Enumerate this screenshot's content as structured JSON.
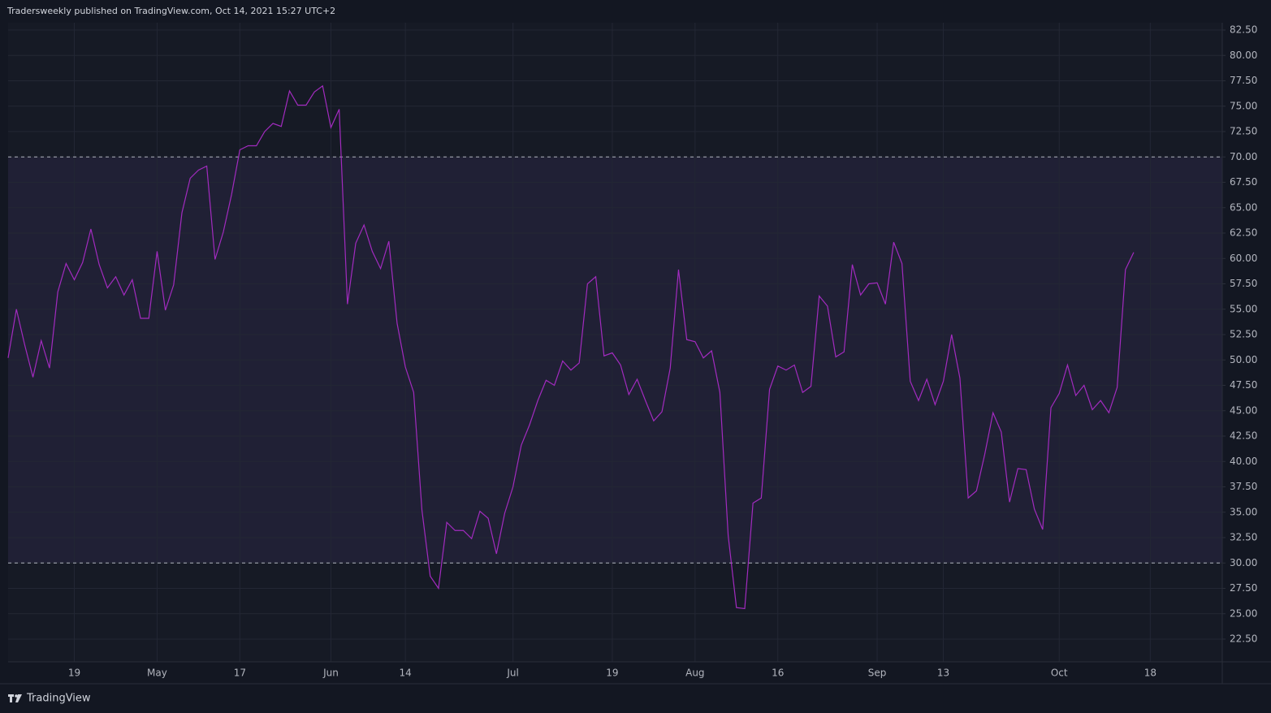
{
  "header": {
    "title": "Tradersweekly published on TradingView.com, Oct 14, 2021 15:27 UTC+2"
  },
  "footer": {
    "brand": "TradingView"
  },
  "chart_data": {
    "type": "line",
    "series": [
      {
        "color": "#a22bbf",
        "values": [
          50.2,
          55,
          51.5,
          48.3,
          51.9,
          49.2,
          56.7,
          59.5,
          57.9,
          59.6,
          62.9,
          59.4,
          57.1,
          58.2,
          56.4,
          57.9,
          54.1,
          54.1,
          60.7,
          54.9,
          57.4,
          64.5,
          67.9,
          68.7,
          69.1,
          59.9,
          62.6,
          66.3,
          70.7,
          71.1,
          71.1,
          72.5,
          73.3,
          73,
          76.5,
          75.1,
          75.1,
          76.4,
          77,
          72.9,
          74.7,
          55.5,
          61.5,
          63.3,
          60.7,
          59,
          61.7,
          53.6,
          49.3,
          46.8,
          35.2,
          28.7,
          27.5,
          34,
          33.2,
          33.2,
          32.4,
          35.1,
          34.4,
          30.9,
          34.9,
          37.5,
          41.6,
          43.6,
          46,
          48,
          47.5,
          49.9,
          49,
          49.7,
          57.5,
          58.2,
          50.4,
          50.7,
          49.5,
          46.6,
          48.1,
          46,
          44,
          44.9,
          49.2,
          58.9,
          52,
          51.8,
          50.2,
          50.9,
          46.8,
          32.7,
          25.6,
          25.5,
          35.9,
          36.4,
          47.1,
          49.4,
          49,
          49.5,
          46.8,
          47.4,
          56.3,
          55.3,
          50.3,
          50.8,
          59.4,
          56.4,
          57.5,
          57.6,
          55.5,
          61.6,
          59.5,
          47.9,
          46,
          48.1,
          45.6,
          47.9,
          52.5,
          48.2,
          36.4,
          37.1,
          40.7,
          44.8,
          42.9,
          36,
          39.3,
          39.2,
          35.3,
          33.3,
          45.3,
          46.7,
          49.5,
          46.5,
          47.5,
          45.1,
          46,
          44.8,
          47.3,
          58.9,
          60.6
        ]
      }
    ],
    "band": [
      30,
      70
    ],
    "band_color": "#7e57c2",
    "xlim": [
      0,
      146.7
    ],
    "xticks": [
      {
        "value": 8,
        "label": "19"
      },
      {
        "value": 18,
        "label": "May"
      },
      {
        "value": 28,
        "label": "17"
      },
      {
        "value": 39,
        "label": "Jun"
      },
      {
        "value": 48,
        "label": "14"
      },
      {
        "value": 61,
        "label": "Jul"
      },
      {
        "value": 73,
        "label": "19"
      },
      {
        "value": 83,
        "label": "Aug"
      },
      {
        "value": 93,
        "label": "16"
      },
      {
        "value": 105,
        "label": "Sep"
      },
      {
        "value": 113,
        "label": "13"
      },
      {
        "value": 127,
        "label": "Oct"
      },
      {
        "value": 138,
        "label": "18"
      }
    ],
    "ylim": [
      20.26,
      83.22
    ],
    "yticks": [
      {
        "value": 22.5,
        "label": "22.50"
      },
      {
        "value": 25,
        "label": "25.00"
      },
      {
        "value": 27.5,
        "label": "27.50"
      },
      {
        "value": 30,
        "label": "30.00"
      },
      {
        "value": 32.5,
        "label": "32.50"
      },
      {
        "value": 35,
        "label": "35.00"
      },
      {
        "value": 37.5,
        "label": "37.50"
      },
      {
        "value": 40,
        "label": "40.00"
      },
      {
        "value": 42.5,
        "label": "42.50"
      },
      {
        "value": 45,
        "label": "45.00"
      },
      {
        "value": 47.5,
        "label": "47.50"
      },
      {
        "value": 50,
        "label": "50.00"
      },
      {
        "value": 52.5,
        "label": "52.50"
      },
      {
        "value": 55,
        "label": "55.00"
      },
      {
        "value": 57.5,
        "label": "57.50"
      },
      {
        "value": 60,
        "label": "60.00"
      },
      {
        "value": 62.5,
        "label": "62.50"
      },
      {
        "value": 65,
        "label": "65.00"
      },
      {
        "value": 67.5,
        "label": "67.50"
      },
      {
        "value": 70,
        "label": "70.00"
      },
      {
        "value": 72.5,
        "label": "72.50"
      },
      {
        "value": 75,
        "label": "75.00"
      },
      {
        "value": 77.5,
        "label": "77.50"
      },
      {
        "value": 80,
        "label": "80.00"
      },
      {
        "value": 82.5,
        "label": "82.50"
      }
    ],
    "grid": true
  }
}
